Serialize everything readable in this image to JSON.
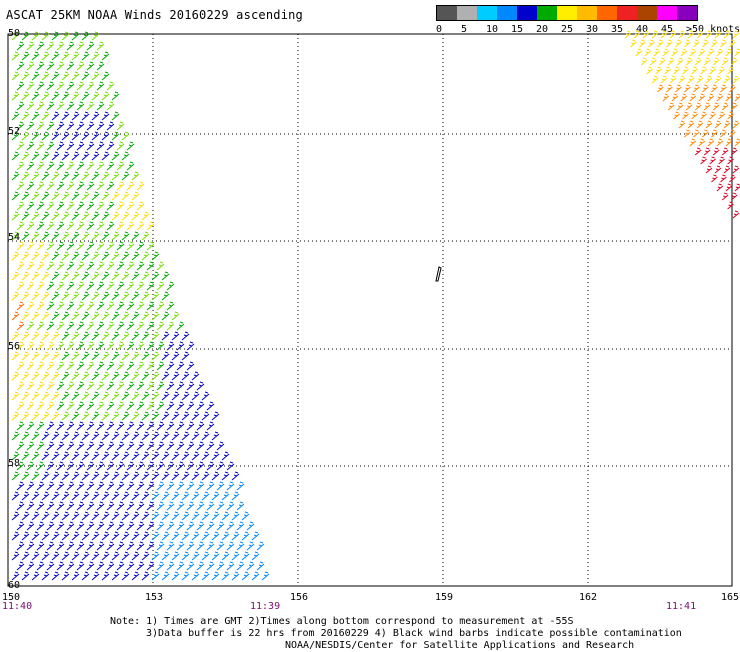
{
  "title": "ASCAT 25KM NOAA Winds 20160229 ascending",
  "legend": {
    "labels": [
      "0",
      "5",
      "10",
      "15",
      "20",
      "25",
      "30",
      "35",
      "40",
      "45",
      ">50 knots"
    ],
    "colors": [
      "#555555",
      "#b8b8b8",
      "#00bfff",
      "#0077ff",
      "#0000cc",
      "#00aa00",
      "#77dd00",
      "#ffee00",
      "#ffbb00",
      "#ff7700",
      "#ff3300",
      "#dd0022",
      "#aa4400",
      "#ff00ff",
      "#8800bb"
    ]
  },
  "grid": {
    "longitudes": [
      "150",
      "153",
      "156",
      "159",
      "162",
      "165"
    ],
    "latitudes": [
      "50",
      "52",
      "54",
      "56",
      "58",
      "60"
    ]
  },
  "times": {
    "left": "11:40",
    "middle": "11:39",
    "right": "11:41"
  },
  "notes": {
    "line1": "Note: 1) Times are GMT 2)Times along bottom correspond to measurement at -55S",
    "line2": "3)Data buffer is 22 hrs from 20160229 4) Black wind barbs indicate possible contamination",
    "line3": "NOAA/NESDIS/Center for Satellite Applications and Research"
  }
}
